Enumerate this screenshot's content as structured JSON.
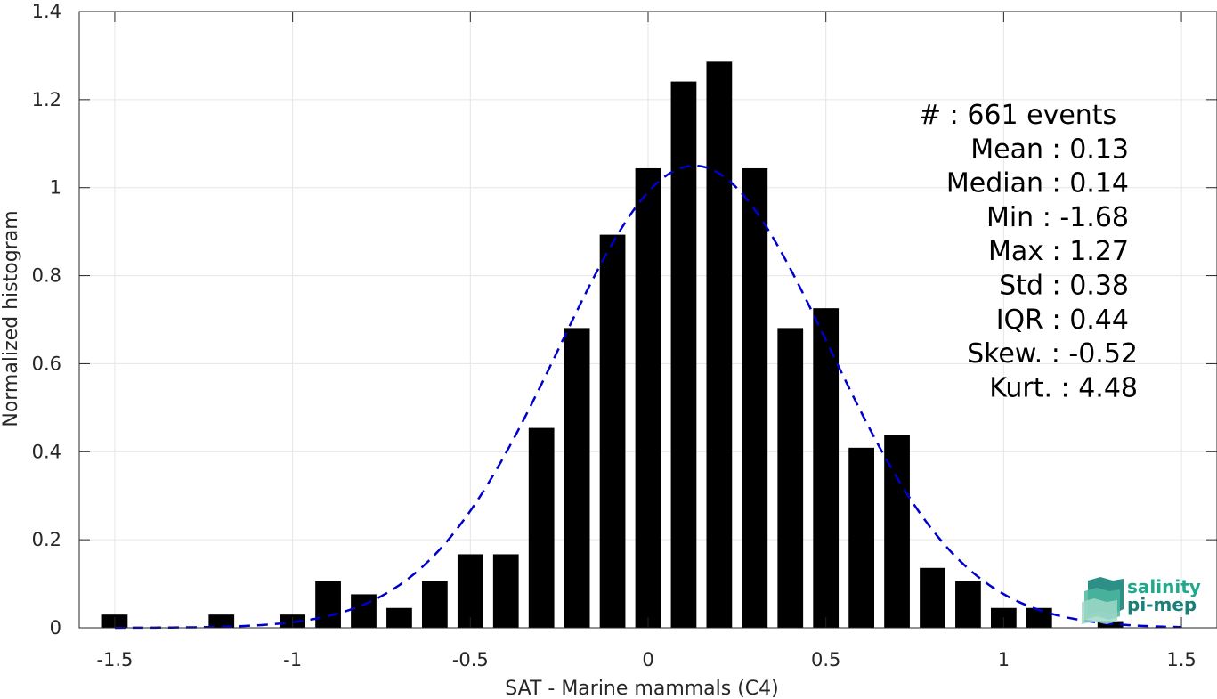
{
  "chart_data": {
    "type": "bar",
    "xlabel": "SAT - Marine mammals (C4)",
    "ylabel": "Normalized histogram",
    "xlim": [
      -1.6,
      1.6
    ],
    "ylim": [
      0,
      1.4
    ],
    "grid": true,
    "xticks": [
      -1.5,
      -1,
      -0.5,
      0,
      0.5,
      1,
      1.5
    ],
    "xtick_labels": [
      "-1.5",
      "-1",
      "-0.5",
      "0",
      "0.5",
      "1",
      "1.5"
    ],
    "yticks": [
      0,
      0.2,
      0.4,
      0.6,
      0.8,
      1,
      1.2,
      1.4
    ],
    "ytick_labels": [
      "0",
      "0.2",
      "0.4",
      "0.6",
      "0.8",
      "1",
      "1.2",
      "1.4"
    ],
    "bar_color": "#000000",
    "bin_width": 0.1,
    "bins": [
      {
        "x": -1.5,
        "y": 0.03
      },
      {
        "x": -1.2,
        "y": 0.03
      },
      {
        "x": -1.0,
        "y": 0.03
      },
      {
        "x": -0.9,
        "y": 0.106
      },
      {
        "x": -0.8,
        "y": 0.076
      },
      {
        "x": -0.7,
        "y": 0.045
      },
      {
        "x": -0.6,
        "y": 0.106
      },
      {
        "x": -0.5,
        "y": 0.167
      },
      {
        "x": -0.4,
        "y": 0.167
      },
      {
        "x": -0.3,
        "y": 0.454
      },
      {
        "x": -0.2,
        "y": 0.681
      },
      {
        "x": -0.1,
        "y": 0.893
      },
      {
        "x": 0.0,
        "y": 1.044
      },
      {
        "x": 0.1,
        "y": 1.241
      },
      {
        "x": 0.2,
        "y": 1.286
      },
      {
        "x": 0.3,
        "y": 1.044
      },
      {
        "x": 0.4,
        "y": 0.681
      },
      {
        "x": 0.5,
        "y": 0.726
      },
      {
        "x": 0.6,
        "y": 0.409
      },
      {
        "x": 0.7,
        "y": 0.439
      },
      {
        "x": 0.8,
        "y": 0.136
      },
      {
        "x": 0.9,
        "y": 0.106
      },
      {
        "x": 1.0,
        "y": 0.045
      },
      {
        "x": 1.1,
        "y": 0.045
      },
      {
        "x": 1.3,
        "y": 0.015
      }
    ],
    "fit_curve": {
      "type": "gaussian",
      "mean": 0.13,
      "std": 0.38,
      "x_range": [
        -1.5,
        1.5
      ],
      "color": "#0000cc",
      "style": "dashed"
    },
    "stats": [
      {
        "label": "#  :",
        "value": "661 events"
      },
      {
        "label": "Mean :",
        "value": "0.13"
      },
      {
        "label": "Median :",
        "value": "0.14"
      },
      {
        "label": "Min :",
        "value": "-1.68"
      },
      {
        "label": "Max :",
        "value": "1.27"
      },
      {
        "label": "Std :",
        "value": "0.38"
      },
      {
        "label": "IQR :",
        "value": "0.44"
      },
      {
        "label": "Skew. :",
        "value": "-0.52"
      },
      {
        "label": "Kurt. :",
        "value": "4.48"
      }
    ]
  },
  "logo": {
    "line1": "salinity",
    "line2": "pi-mep",
    "color": "#1fa88a"
  }
}
